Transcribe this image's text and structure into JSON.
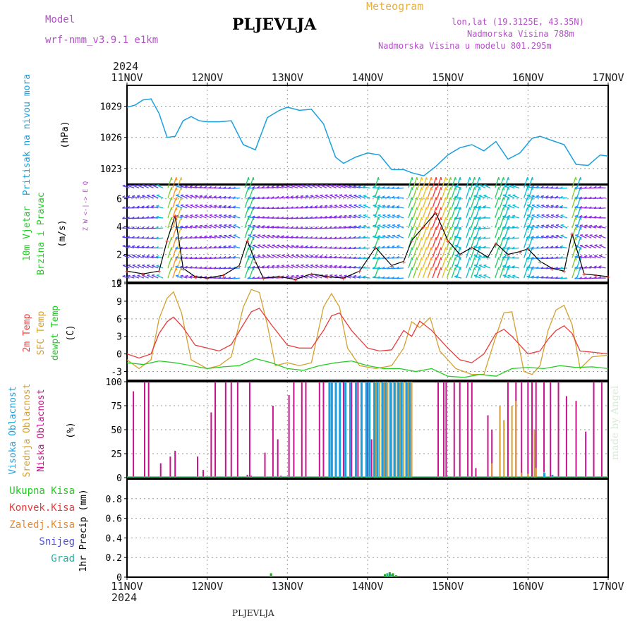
{
  "header": {
    "model_label": "Model",
    "model_name": "wrf-nmm_v3.9.1 e1km",
    "title": "PLJEVLJA",
    "meteogram": "Meteogram",
    "coords": "lon,lat (19.3125E, 43.35N)",
    "elevation": "Nadmorska Visina 788m",
    "model_elevation": "Nadmorska Visina u modelu 801.295m",
    "footer": "PLJEVLJA",
    "credit": "made by Angel"
  },
  "colors": {
    "purple": "#b44ec8",
    "orange": "#e8b040",
    "pressure": "#1aa0e0",
    "temp2m": "#e83c3c",
    "sfc": "#d4a030",
    "dew": "#22cc22",
    "high_cloud": "#1aa0e0",
    "mid_cloud": "#d4a030",
    "low_cloud": "#c8148c",
    "precip": "#22aa22",
    "gridline": "#999999"
  },
  "chart_data": [
    {
      "type": "line",
      "panel": "pressure",
      "ylabel_side": "Pritisak na nivou mora",
      "ylabel": "(hPa)",
      "ylim": [
        1021.5,
        1031.0
      ],
      "yticks": [
        1023,
        1026,
        1029
      ],
      "x_dates": [
        "11NOV",
        "12NOV",
        "13NOV",
        "14NOV",
        "15NOV",
        "16NOV",
        "17NOV"
      ],
      "year": "2024",
      "series": [
        {
          "name": "Pritisak na nivou mora",
          "x": [
            0,
            0.1,
            0.2,
            0.3,
            0.4,
            0.5,
            0.6,
            0.7,
            0.8,
            0.9,
            1.0,
            1.15,
            1.3,
            1.45,
            1.6,
            1.75,
            1.9,
            2.0,
            2.15,
            2.3,
            2.45,
            2.6,
            2.7,
            2.85,
            3.0,
            3.15,
            3.3,
            3.45,
            3.55,
            3.7,
            3.85,
            4.0,
            4.15,
            4.3,
            4.45,
            4.6,
            4.75,
            4.9,
            5.05,
            5.15,
            5.3,
            5.45,
            5.6,
            5.75,
            5.9,
            6.0
          ],
          "y": [
            1028.9,
            1029.1,
            1029.6,
            1029.7,
            1028.3,
            1026.0,
            1026.1,
            1027.6,
            1028.0,
            1027.6,
            1027.5,
            1027.5,
            1027.6,
            1025.3,
            1024.8,
            1027.9,
            1028.6,
            1028.9,
            1028.6,
            1028.7,
            1027.3,
            1024.1,
            1023.5,
            1024.1,
            1024.5,
            1024.3,
            1022.9,
            1022.9,
            1022.6,
            1022.3,
            1023.2,
            1024.3,
            1025.0,
            1025.3,
            1024.7,
            1025.6,
            1023.9,
            1024.5,
            1025.9,
            1026.1,
            1025.7,
            1025.3,
            1023.4,
            1023.3,
            1024.3,
            1024.2
          ]
        }
      ]
    },
    {
      "type": "line",
      "panel": "wind",
      "ylabel_side": "10m Vjetar Brzina i Pravac",
      "ylabel": "(m/s)",
      "compass": "Z W <-|-> E Q",
      "ylim": [
        0,
        7
      ],
      "yticks": [
        0,
        2,
        4,
        6
      ],
      "series": [
        {
          "name": "10m Vjetar",
          "x": [
            0,
            0.2,
            0.4,
            0.5,
            0.6,
            0.7,
            0.85,
            1.0,
            1.2,
            1.4,
            1.5,
            1.6,
            1.7,
            1.9,
            2.1,
            2.3,
            2.5,
            2.7,
            2.9,
            3.1,
            3.3,
            3.45,
            3.55,
            3.7,
            3.85,
            4.0,
            4.15,
            4.3,
            4.5,
            4.6,
            4.75,
            4.9,
            5.0,
            5.15,
            5.3,
            5.45,
            5.55,
            5.7,
            5.85,
            6.0
          ],
          "y": [
            0.8,
            0.6,
            0.8,
            3.0,
            4.8,
            1.0,
            0.4,
            0.3,
            0.5,
            1.2,
            3.0,
            1.5,
            0.3,
            0.4,
            0.2,
            0.6,
            0.4,
            0.3,
            0.8,
            2.5,
            1.2,
            1.5,
            3.0,
            4.0,
            5.0,
            3.0,
            2.0,
            2.5,
            1.8,
            2.8,
            2.0,
            2.2,
            2.4,
            1.5,
            1.0,
            0.8,
            3.5,
            0.6,
            0.5,
            0.4
          ]
        }
      ]
    },
    {
      "type": "line",
      "panel": "temperature",
      "ylabel_side": [
        "2m Temp",
        "SFC Temp",
        "dewpt Temp"
      ],
      "ylabel": "(C)",
      "ylim": [
        -4.5,
        12
      ],
      "yticks": [
        -3,
        0,
        3,
        6,
        9,
        12
      ],
      "series": [
        {
          "name": "2m Temp",
          "x": [
            0,
            0.15,
            0.3,
            0.4,
            0.5,
            0.58,
            0.7,
            0.85,
            1.0,
            1.15,
            1.3,
            1.45,
            1.55,
            1.65,
            1.8,
            2.0,
            2.15,
            2.3,
            2.45,
            2.55,
            2.65,
            2.8,
            3.0,
            3.15,
            3.3,
            3.45,
            3.55,
            3.65,
            3.8,
            4.0,
            4.15,
            4.3,
            4.45,
            4.6,
            4.7,
            4.8,
            5.0,
            5.15,
            5.25,
            5.35,
            5.45,
            5.55,
            5.65,
            5.8,
            6.0
          ],
          "y": [
            0.0,
            -0.7,
            0.0,
            3.5,
            5.5,
            6.3,
            4.5,
            1.5,
            1.0,
            0.5,
            1.6,
            5.0,
            7.2,
            7.8,
            5.0,
            1.5,
            1.0,
            1.0,
            4.0,
            6.5,
            7.0,
            4.0,
            1.0,
            0.5,
            0.7,
            4.0,
            3.0,
            5.6,
            4.0,
            1.0,
            -1.0,
            -1.5,
            0.0,
            3.5,
            4.2,
            3.0,
            0.0,
            0.5,
            2.5,
            4.0,
            4.8,
            3.5,
            0.5,
            0.3,
            0.0
          ]
        },
        {
          "name": "SFC Temp",
          "x": [
            0,
            0.15,
            0.3,
            0.4,
            0.5,
            0.58,
            0.68,
            0.8,
            1.0,
            1.15,
            1.3,
            1.45,
            1.55,
            1.65,
            1.75,
            1.85,
            2.0,
            2.15,
            2.3,
            2.45,
            2.55,
            2.65,
            2.75,
            2.9,
            3.1,
            3.3,
            3.45,
            3.55,
            3.65,
            3.78,
            3.9,
            4.1,
            4.3,
            4.45,
            4.6,
            4.7,
            4.8,
            4.95,
            5.05,
            5.15,
            5.25,
            5.35,
            5.45,
            5.55,
            5.65,
            5.8,
            6.0
          ],
          "y": [
            -1.0,
            -2.5,
            -1.0,
            6.0,
            9.5,
            10.6,
            7.0,
            -1.0,
            -2.5,
            -2.0,
            -0.5,
            8.0,
            11.0,
            10.5,
            5.0,
            -2.0,
            -1.5,
            -2.0,
            -1.5,
            8.0,
            10.3,
            8.0,
            1.0,
            -2.0,
            -2.5,
            -2.0,
            1.0,
            5.5,
            4.5,
            6.2,
            0.5,
            -2.5,
            -3.5,
            -3.5,
            3.0,
            7.0,
            7.2,
            -3.0,
            -3.5,
            -2.0,
            4.0,
            7.5,
            8.3,
            5.0,
            -2.5,
            -0.5,
            -0.2
          ]
        },
        {
          "name": "dewpt Temp",
          "x": [
            0,
            0.2,
            0.4,
            0.6,
            0.8,
            1.0,
            1.2,
            1.4,
            1.6,
            1.8,
            2.0,
            2.2,
            2.4,
            2.6,
            2.8,
            3.0,
            3.2,
            3.4,
            3.6,
            3.8,
            4.0,
            4.2,
            4.4,
            4.6,
            4.8,
            5.0,
            5.2,
            5.4,
            5.6,
            5.8,
            6.0
          ],
          "y": [
            -1.5,
            -1.8,
            -1.2,
            -1.5,
            -2.0,
            -2.5,
            -2.2,
            -2.0,
            -0.8,
            -1.5,
            -2.5,
            -2.8,
            -2.0,
            -1.5,
            -1.2,
            -2.0,
            -2.5,
            -2.5,
            -3.0,
            -2.5,
            -3.8,
            -4.0,
            -3.5,
            -3.8,
            -2.5,
            -2.3,
            -2.5,
            -2.0,
            -2.3,
            -2.2,
            -2.5
          ]
        }
      ]
    },
    {
      "type": "bar",
      "panel": "clouds",
      "ylabel_side": [
        "Visoka Oblacnost",
        "Srednja Oblacnost",
        "Niska Oblacnost"
      ],
      "ylabel": "(%)",
      "ylim": [
        0,
        100
      ],
      "yticks": [
        0,
        25,
        50,
        75,
        100
      ],
      "series": [
        {
          "name": "Niska Oblacnost",
          "x": [
            0.08,
            0.22,
            0.27,
            0.42,
            0.54,
            0.6,
            0.88,
            0.95,
            1.05,
            1.1,
            1.23,
            1.3,
            1.38,
            1.5,
            1.53,
            1.55,
            1.72,
            1.82,
            1.88,
            1.92,
            2.02,
            2.08,
            2.18,
            2.23,
            2.4,
            2.45,
            2.7,
            2.8,
            2.88,
            3.0,
            3.05,
            3.1,
            3.2,
            3.3,
            3.38,
            3.42,
            3.48,
            3.52,
            3.55,
            3.88,
            3.95,
            3.98,
            4.08,
            4.15,
            4.25,
            4.3,
            4.35,
            4.5,
            4.55,
            4.65,
            4.75,
            4.85,
            4.92,
            5.0,
            5.05,
            5.1,
            5.2,
            5.28,
            5.38,
            5.48,
            5.6,
            5.72,
            5.82,
            5.92
          ],
          "y": [
            90,
            100,
            100,
            15,
            22,
            28,
            22,
            8,
            68,
            100,
            100,
            100,
            100,
            3,
            100,
            2,
            26,
            75,
            40,
            2,
            86,
            100,
            100,
            100,
            100,
            100,
            100,
            100,
            100,
            100,
            40,
            100,
            100,
            100,
            100,
            100,
            100,
            100,
            100,
            100,
            100,
            100,
            100,
            100,
            100,
            100,
            10,
            65,
            50,
            48,
            100,
            100,
            100,
            100,
            100,
            100,
            100,
            100,
            100,
            85,
            80,
            48,
            100,
            100
          ]
        },
        {
          "name": "Srednja Oblacnost",
          "x": [
            3.1,
            3.15,
            3.2,
            3.25,
            3.3,
            3.35,
            3.4,
            3.45,
            3.5,
            3.55,
            4.55,
            4.65,
            4.7,
            4.8,
            4.85,
            4.92,
            5.0,
            5.08,
            5.1,
            5.2
          ],
          "y": [
            100,
            100,
            100,
            100,
            100,
            100,
            100,
            100,
            100,
            100,
            15,
            75,
            60,
            75,
            80,
            5,
            4,
            50,
            10,
            6
          ]
        },
        {
          "name": "Visoka Oblacnost",
          "x": [
            2.52,
            2.55,
            2.6,
            2.65,
            2.72,
            2.78,
            2.85,
            2.92,
            2.98,
            3.02,
            3.08,
            3.12,
            3.18,
            3.22,
            3.28,
            3.33,
            3.38,
            3.42,
            3.48,
            3.52,
            5.2,
            5.3
          ],
          "y": [
            100,
            100,
            100,
            100,
            100,
            100,
            100,
            100,
            100,
            100,
            100,
            100,
            100,
            100,
            100,
            100,
            100,
            100,
            100,
            100,
            5,
            3
          ]
        }
      ]
    },
    {
      "type": "bar",
      "panel": "precipitation",
      "ylabel": "1hr Precip (mm)",
      "legend": [
        "Ukupna Kisa",
        "Konvek.Kisa",
        "Zaledj.Kisa",
        "Snijeg",
        "Grad"
      ],
      "ylim": [
        0,
        1.0
      ],
      "yticks": [
        0,
        0.2,
        0.4,
        0.6,
        0.8
      ],
      "series": [
        {
          "name": "Ukupna Kisa",
          "x": [
            1.8,
            3.22,
            3.28,
            3.32,
            3.36
          ],
          "y": [
            0.04,
            0.03,
            0.05,
            0.04,
            0.02
          ]
        },
        {
          "name": "Grad",
          "x": [
            3.25,
            3.3
          ],
          "y": [
            0.04,
            0.03
          ]
        }
      ]
    }
  ]
}
